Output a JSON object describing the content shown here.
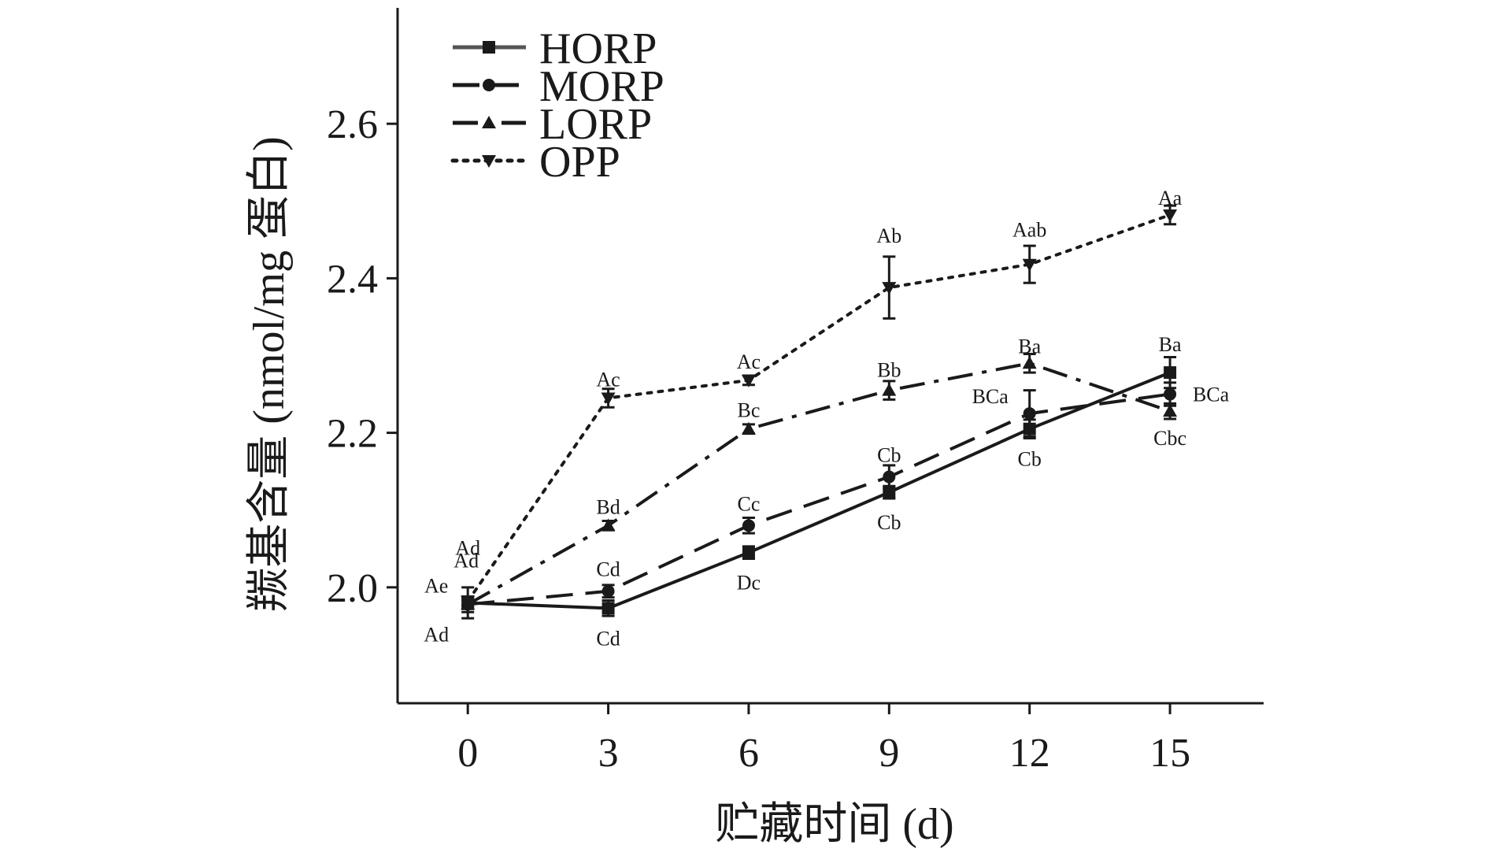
{
  "chart_data": {
    "type": "line",
    "title": "",
    "xlabel": "贮藏时间 (d)",
    "ylabel": "羰基含量 (nmol/mg 蛋白)",
    "x": [
      0,
      3,
      6,
      9,
      12,
      15
    ],
    "x_tick_labels": [
      "0",
      "3",
      "6",
      "9",
      "12",
      "15"
    ],
    "xlim": [
      -1.5,
      17
    ],
    "ylim": [
      1.85,
      2.75
    ],
    "y_ticks": [
      2.0,
      2.2,
      2.4,
      2.6
    ],
    "y_tick_labels": [
      "2.0",
      "2.2",
      "2.4",
      "2.6"
    ],
    "grid": false,
    "legend_position": "top-left",
    "series": [
      {
        "name": "HORP",
        "line_style": "solid",
        "marker": "square",
        "values": [
          1.98,
          1.973,
          2.045,
          2.123,
          2.205,
          2.278
        ],
        "errors": [
          0.02,
          0.01,
          0.008,
          0.008,
          0.012,
          0.02
        ],
        "labels": [
          "Ad",
          "Cd",
          "Dc",
          "Cb",
          "Cb",
          "Ba"
        ]
      },
      {
        "name": "MORP",
        "line_style": "dashed",
        "marker": "circle",
        "values": [
          1.978,
          1.995,
          2.08,
          2.143,
          2.225,
          2.25
        ],
        "errors": [
          0.01,
          0.008,
          0.01,
          0.015,
          0.03,
          0.015
        ],
        "labels": [
          "Ad",
          "Cd",
          "Cc",
          "Cb",
          "BCa",
          "BCa"
        ]
      },
      {
        "name": "LORP",
        "line_style": "dashdot",
        "marker": "triangle-up",
        "values": [
          1.978,
          2.08,
          2.205,
          2.255,
          2.29,
          2.228
        ],
        "errors": [
          0.006,
          0.006,
          0.006,
          0.012,
          0.012,
          0.01
        ],
        "labels": [
          "Ae",
          "Bd",
          "Bc",
          "Bb",
          "Ba",
          "Cbc"
        ]
      },
      {
        "name": "OPP",
        "line_style": "dotted",
        "marker": "triangle-down",
        "values": [
          1.982,
          2.245,
          2.268,
          2.388,
          2.418,
          2.482
        ],
        "errors": [
          0.006,
          0.012,
          0.006,
          0.04,
          0.024,
          0.012
        ],
        "labels": [
          "Ad",
          "Ac",
          "Ac",
          "Ab",
          "Aab",
          "Aa"
        ]
      }
    ]
  }
}
